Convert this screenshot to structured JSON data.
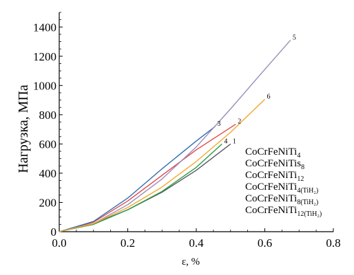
{
  "chart_data": {
    "type": "line",
    "xlabel": "ε, %",
    "ylabel": "Нагрузка, МПа",
    "xlim": [
      0,
      0.8
    ],
    "ylim": [
      0,
      1500
    ],
    "x_ticks": [
      "0.0",
      "0.2",
      "0.4",
      "0.6",
      "0.8"
    ],
    "y_ticks": [
      "0",
      "200",
      "400",
      "600",
      "800",
      "1000",
      "1200",
      "1400"
    ],
    "grid": false,
    "legend": [
      {
        "base": "CoCrFeNiTi",
        "sub": "4"
      },
      {
        "base": "CoCrFeNiTis",
        "sub": "8"
      },
      {
        "base": "CoCrFeNiTi",
        "sub": "12"
      },
      {
        "base": "CoCrFeNiTi",
        "sub": "4(TiH₂)"
      },
      {
        "base": "CoCrFeNiTi",
        "sub": "8(TiH₂)"
      },
      {
        "base": "CoCrFeNiTi",
        "sub": "12(TiH₂)"
      }
    ],
    "series": [
      {
        "tag": "1",
        "color": "#555a5f",
        "x": [
          0,
          0.1,
          0.2,
          0.3,
          0.4,
          0.5
        ],
        "y": [
          0,
          55,
          150,
          270,
          420,
          600
        ]
      },
      {
        "tag": "2",
        "color": "#e0484c",
        "x": [
          0,
          0.1,
          0.2,
          0.3,
          0.4,
          0.515
        ],
        "y": [
          0,
          65,
          210,
          385,
          560,
          735
        ]
      },
      {
        "tag": "3",
        "color": "#2e6fb0",
        "x": [
          0,
          0.1,
          0.2,
          0.3,
          0.4,
          0.455
        ],
        "y": [
          0,
          70,
          230,
          430,
          620,
          720
        ]
      },
      {
        "tag": "4",
        "color": "#2a9a48",
        "x": [
          0,
          0.1,
          0.2,
          0.3,
          0.4,
          0.475
        ],
        "y": [
          0,
          50,
          150,
          275,
          440,
          600
        ]
      },
      {
        "tag": "5",
        "color": "#9a8cb8",
        "x": [
          0,
          0.1,
          0.2,
          0.3,
          0.4,
          0.5,
          0.6,
          0.675
        ],
        "y": [
          0,
          55,
          185,
          360,
          580,
          840,
          1110,
          1310
        ]
      },
      {
        "tag": "6",
        "color": "#f2a82c",
        "x": [
          0,
          0.1,
          0.2,
          0.3,
          0.4,
          0.5,
          0.6
        ],
        "y": [
          0,
          55,
          165,
          305,
          480,
          680,
          905
        ]
      }
    ]
  }
}
